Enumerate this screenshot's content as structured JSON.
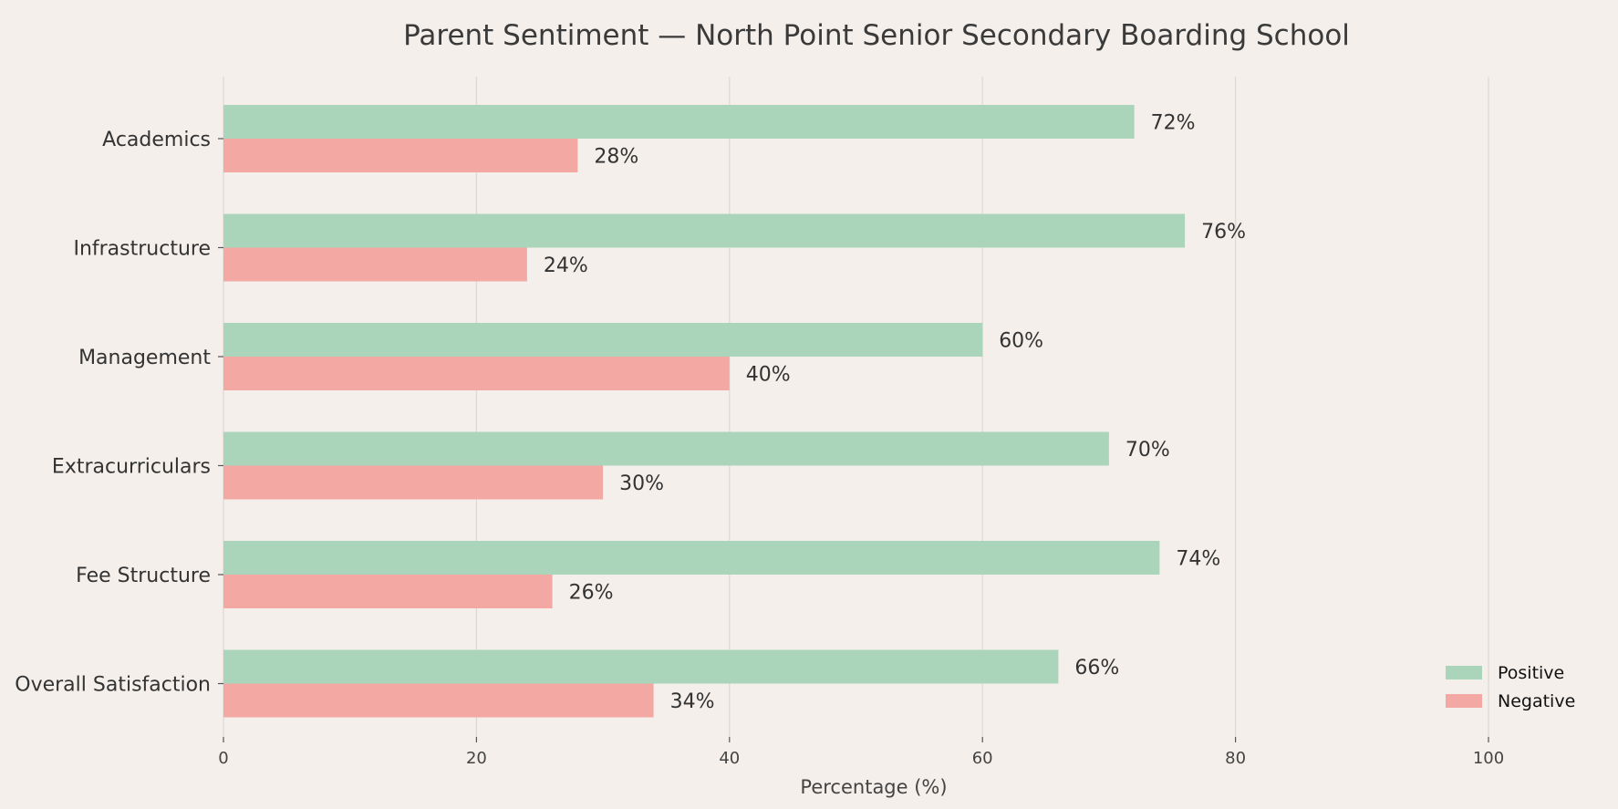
{
  "chart_data": {
    "type": "bar",
    "orientation": "horizontal",
    "title": "Parent Sentiment — North Point Senior Secondary Boarding School",
    "categories": [
      "Academics",
      "Infrastructure",
      "Management",
      "Extracurriculars",
      "Fee Structure",
      "Overall Satisfaction"
    ],
    "series": [
      {
        "name": "Positive",
        "values": [
          72,
          76,
          60,
          70,
          74,
          66
        ],
        "color": "#abd5bb"
      },
      {
        "name": "Negative",
        "values": [
          28,
          24,
          40,
          30,
          26,
          34
        ],
        "color": "#f3a8a3"
      }
    ],
    "data_labels": {
      "Positive": [
        "72%",
        "76%",
        "60%",
        "70%",
        "74%",
        "66%"
      ],
      "Negative": [
        "28%",
        "24%",
        "40%",
        "30%",
        "26%",
        "34%"
      ]
    },
    "xlabel": "Percentage (%)",
    "ylabel": "",
    "xlim": [
      0,
      100
    ],
    "xticks": [
      "0",
      "20",
      "40",
      "60",
      "80",
      "100"
    ],
    "grid": "vertical",
    "legend_position": "bottom-right"
  }
}
